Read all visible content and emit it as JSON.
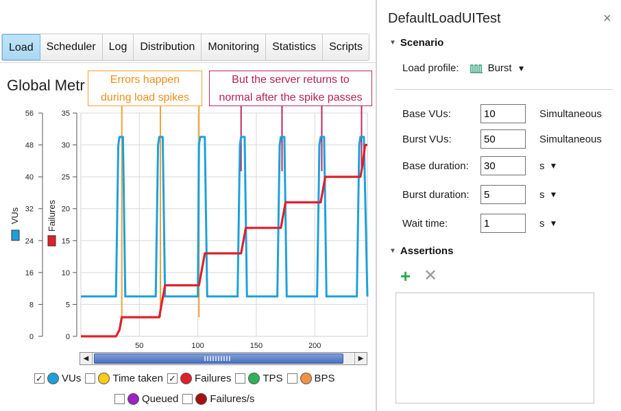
{
  "tabs": [
    {
      "label": "Load",
      "active": true
    },
    {
      "label": "Scheduler",
      "active": false
    },
    {
      "label": "Log",
      "active": false
    },
    {
      "label": "Distribution",
      "active": false
    },
    {
      "label": "Monitoring",
      "active": false
    },
    {
      "label": "Statistics",
      "active": false
    },
    {
      "label": "Scripts",
      "active": false
    }
  ],
  "chart_title": "Global Metr",
  "callouts": {
    "errors": [
      "Errors happen",
      "during load spikes"
    ],
    "server": [
      "But the server returns to",
      "normal after the spike passes"
    ]
  },
  "chart_data": {
    "type": "line",
    "x_ticks": [
      50,
      100,
      150,
      200
    ],
    "xlim": [
      0,
      245
    ],
    "y_left": {
      "label": "VUs",
      "ticks": [
        0,
        8,
        16,
        24,
        32,
        40,
        48,
        56
      ],
      "lim": [
        0,
        56
      ]
    },
    "y_right": {
      "label": "Failures",
      "ticks": [
        0,
        5,
        10,
        15,
        20,
        25,
        30,
        35
      ],
      "lim": [
        0,
        35
      ]
    },
    "series": [
      {
        "name": "VUs",
        "color": "#1ea0dc",
        "axis": "left",
        "x": [
          0,
          30,
          32,
          33,
          36,
          38,
          64,
          66,
          67,
          69,
          70,
          72,
          100,
          101,
          102,
          104,
          106,
          108,
          134,
          136,
          137,
          140,
          142,
          168,
          170,
          171,
          174,
          176,
          202,
          204,
          205,
          208,
          210,
          236,
          238,
          239,
          242,
          245
        ],
        "values": [
          10,
          10,
          48,
          50,
          50,
          10,
          10,
          48,
          50,
          50,
          50,
          10,
          10,
          48,
          50,
          50,
          50,
          10,
          10,
          48,
          50,
          50,
          10,
          10,
          48,
          50,
          50,
          10,
          10,
          48,
          50,
          50,
          10,
          10,
          48,
          50,
          50,
          10
        ]
      },
      {
        "name": "Failures",
        "color": "#e0202a",
        "axis": "right",
        "x": [
          0,
          30,
          33,
          35,
          37,
          67,
          69,
          71,
          72,
          101,
          103,
          105,
          106,
          137,
          139,
          141,
          142,
          171,
          173,
          175,
          176,
          205,
          207,
          209,
          210,
          239,
          241,
          243,
          245
        ],
        "values": [
          0,
          0,
          1,
          3,
          3,
          3,
          5,
          7,
          8,
          8,
          10,
          12,
          13,
          13,
          15,
          17,
          17,
          17,
          19,
          21,
          21,
          21,
          23,
          25,
          25,
          25,
          27,
          30,
          30
        ]
      }
    ],
    "error_markers_x": [
      35,
      68,
      101
    ],
    "recovery_markers_x": [
      137,
      172,
      206,
      240
    ]
  },
  "legend": [
    {
      "label": "VUs",
      "checked": true,
      "color": "#1ea0dc",
      "row": 1
    },
    {
      "label": "Time taken",
      "checked": false,
      "color": "#ffcc11",
      "row": 1
    },
    {
      "label": "Failures",
      "checked": true,
      "color": "#e0202a",
      "row": 1
    },
    {
      "label": "TPS",
      "checked": false,
      "color": "#2fb15c",
      "row": 1
    },
    {
      "label": "BPS",
      "checked": false,
      "color": "#f39243",
      "row": 1
    },
    {
      "label": "Queued",
      "checked": false,
      "color": "#9a22c6",
      "row": 2
    },
    {
      "label": "Failures/s",
      "checked": false,
      "color": "#a50f12",
      "row": 2
    }
  ],
  "panel": {
    "title": "DefaultLoadUITest",
    "close_icon": "×",
    "scenario_label": "Scenario",
    "load_profile_label": "Load profile:",
    "load_profile_value": "Burst",
    "fields": [
      {
        "label": "Base VUs:",
        "value": "10",
        "unit": "Simultaneous",
        "unit_dropdown": false
      },
      {
        "label": "Burst VUs:",
        "value": "50",
        "unit": "Simultaneous",
        "unit_dropdown": false
      },
      {
        "label": "Base duration:",
        "value": "30",
        "unit": "s",
        "unit_dropdown": true
      },
      {
        "label": "Burst duration:",
        "value": "5",
        "unit": "s",
        "unit_dropdown": true
      },
      {
        "label": "Wait time:",
        "value": "1",
        "unit": "s",
        "unit_dropdown": true
      }
    ],
    "assertions_label": "Assertions",
    "add_icon": "+",
    "remove_icon": "✕"
  },
  "scroll": {
    "left_arrow": "◀",
    "right_arrow": "▶"
  }
}
